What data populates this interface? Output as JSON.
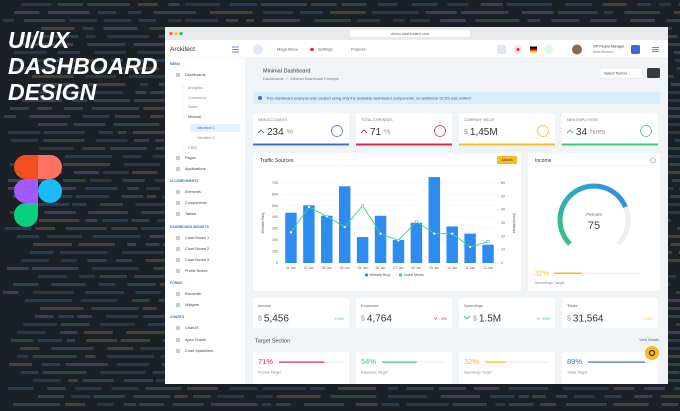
{
  "promo": {
    "title_lines": [
      "UI/UX",
      "DASHBOARD",
      "DESIGN"
    ]
  },
  "browser": {
    "url": "demo.dashboard.com"
  },
  "header": {
    "brand": "Arckitect",
    "menu": [
      "Mega Menu",
      "Settings",
      "Projects"
    ],
    "user_role": "VIP People Manager",
    "user_name": "Alina Mclourd"
  },
  "sidebar": {
    "items": [
      "MENU",
      "Dashboards",
      "Analytics",
      "Commerce",
      "Sales",
      "Minimal",
      "Variation 1",
      "Variation 2",
      "CRM",
      "Pages",
      "Applications",
      "UI COMPONENTS",
      "Elements",
      "Components",
      "Tables",
      "DASHBOARD WIDGETS",
      "Chart Boxes 1",
      "Chart Boxes 2",
      "Chart Boxes 3",
      "Profile Boxes",
      "FORMS",
      "Elements",
      "Widgets",
      "CHARTS",
      "ChartJS",
      "Apex Charts",
      "Chart Sparklines"
    ]
  },
  "page": {
    "title": "Minimal Dashboard",
    "breadcrumb": [
      "Dashboards",
      "Minimal Dashboard Example"
    ],
    "period": "Select Period...",
    "notice": "This dashboard example was created using only the available dashboard components, no additional SCSS was written!"
  },
  "stats": [
    {
      "label": "NEW ACCOUNTS",
      "value": "234",
      "unit": "%"
    },
    {
      "label": "TOTAL EXPENSES",
      "value": "71",
      "unit": "%"
    },
    {
      "label": "COMPANY VALUE",
      "prefix": "$",
      "value": "1,45M"
    },
    {
      "label": "NEW EMPLOYEES",
      "value": "34",
      "unit": "hires"
    }
  ],
  "chart_data": {
    "type": "bar",
    "title": "Traffic Sources",
    "button": "Actions",
    "categories": [
      "01 Jan",
      "02 Jan",
      "03 Jan",
      "04 Jan",
      "05 Jan",
      "06 Jan",
      "07 Jan",
      "08 Jan",
      "09 Jan",
      "10 Jan",
      "11 Jan",
      "12 Jan"
    ],
    "series": [
      {
        "name": "Website Blog",
        "type": "bar",
        "color": "#2e8cf0",
        "values": [
          440,
          505,
          414,
          671,
          227,
          413,
          201,
          352,
          752,
          320,
          257,
          160
        ]
      },
      {
        "name": "Social Media",
        "type": "line",
        "color": "#37d67a",
        "axis": "y2",
        "values": [
          23,
          42,
          35,
          27,
          43,
          22,
          17,
          31,
          22,
          22,
          12,
          16
        ]
      }
    ],
    "ylabel": "Website Blog",
    "y2label": "Social Media",
    "ylim": [
      0,
      700
    ],
    "yticks": [
      0,
      100,
      200,
      300,
      400,
      500,
      600,
      700
    ],
    "y2lim": [
      0,
      60
    ],
    "y2ticks": [
      0,
      10,
      20,
      30,
      40,
      50,
      60
    ],
    "grid": true
  },
  "income": {
    "title": "Income",
    "gauge_label": "Percent",
    "gauge": 75,
    "target": 32,
    "target_label": "32%",
    "target_caption": "Spendings Target"
  },
  "summary": [
    {
      "label": "Income",
      "currency": "$",
      "value": "5,456",
      "change": "+14%"
    },
    {
      "label": "Expenses",
      "currency": "$",
      "value": "4,764",
      "change": "8%"
    },
    {
      "label": "Spendings",
      "currency": "$",
      "value": "1.5M",
      "change": "15%"
    },
    {
      "label": "Totals",
      "currency": "$",
      "value": "31,564",
      "change": "+76%"
    }
  ],
  "targets": {
    "title": "Target Section",
    "link": "View Details",
    "items": [
      {
        "value": 71,
        "value_label": "71%",
        "label": "Income Target"
      },
      {
        "value": 54,
        "value_label": "54%",
        "label": "Expenses Target"
      },
      {
        "value": 32,
        "value_label": "32%",
        "label": "Spendings Target"
      },
      {
        "value": 89,
        "value_label": "89%",
        "label": "Totals Target"
      }
    ]
  }
}
